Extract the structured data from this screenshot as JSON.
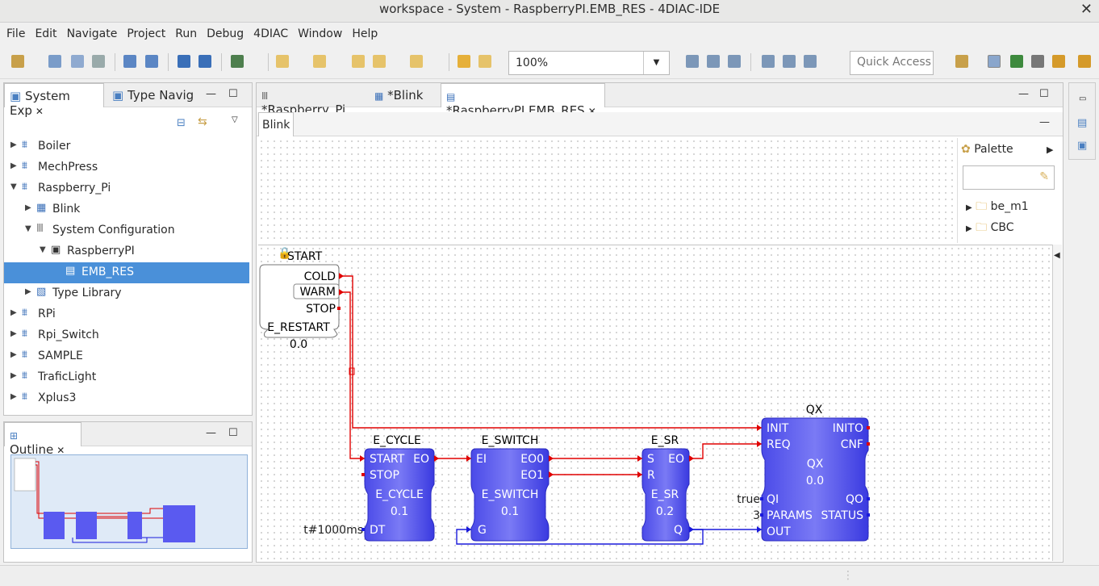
{
  "window": {
    "title": "workspace - System - RaspberryPI.EMB_RES - 4DIAC-IDE"
  },
  "menu": [
    "File",
    "Edit",
    "Navigate",
    "Project",
    "Run",
    "Debug",
    "4DIAC",
    "Window",
    "Help"
  ],
  "toolbar": {
    "zoom": "100%",
    "quick_access": "Quick Access"
  },
  "left_panel": {
    "tabs": [
      "System Exp",
      "Type Navig"
    ],
    "tree": [
      {
        "label": "Boiler"
      },
      {
        "label": "MechPress"
      },
      {
        "label": "Raspberry_Pi"
      },
      {
        "label": "Blink"
      },
      {
        "label": "System Configuration"
      },
      {
        "label": "RaspberryPI"
      },
      {
        "label": "EMB_RES"
      },
      {
        "label": "Type Library"
      },
      {
        "label": "RPi"
      },
      {
        "label": "Rpi_Switch"
      },
      {
        "label": "SAMPLE"
      },
      {
        "label": "TraficLight"
      },
      {
        "label": "Xplus3"
      }
    ]
  },
  "outline": {
    "tab": "Outline"
  },
  "editor": {
    "tabs": [
      "*Raspberry_Pi",
      "*Blink",
      "*RaspberryPI.EMB_RES"
    ],
    "subtab": "Blink",
    "palette": {
      "title": "Palette",
      "items": [
        "be_m1",
        "CBC"
      ]
    }
  },
  "diagram": {
    "start": {
      "name": "START",
      "type": "E_RESTART",
      "version": "0.0",
      "outputs": [
        "COLD",
        "WARM",
        "STOP"
      ]
    },
    "e_cycle": {
      "name": "E_CYCLE",
      "type": "E_CYCLE",
      "version": "0.1",
      "ev_in": [
        "START",
        "STOP"
      ],
      "ev_out": [
        "EO"
      ],
      "data_in": [
        "DT"
      ],
      "dt_value": "t#1000ms"
    },
    "e_switch": {
      "name": "E_SWITCH",
      "type": "E_SWITCH",
      "version": "0.1",
      "ev_in": [
        "EI"
      ],
      "ev_out": [
        "EO0",
        "EO1"
      ],
      "data_in": [
        "G"
      ]
    },
    "e_sr": {
      "name": "E_SR",
      "type": "E_SR",
      "version": "0.2",
      "ev_in": [
        "S",
        "R"
      ],
      "ev_out": [
        "EO"
      ],
      "data_out": [
        "Q"
      ]
    },
    "qx": {
      "name": "QX",
      "type": "QX",
      "version": "0.0",
      "ev_in": [
        "INIT",
        "REQ"
      ],
      "ev_out": [
        "INITO",
        "CNF"
      ],
      "data_in": [
        "QI",
        "PARAMS",
        "OUT"
      ],
      "data_out": [
        "QO",
        "STATUS"
      ],
      "qi_value": "true",
      "params_value": "3"
    }
  },
  "colors": {
    "event_line": "#e00000",
    "data_line": "#1a1adb",
    "fb_fill": "#5a5af0",
    "selected": "#4a90d9"
  }
}
